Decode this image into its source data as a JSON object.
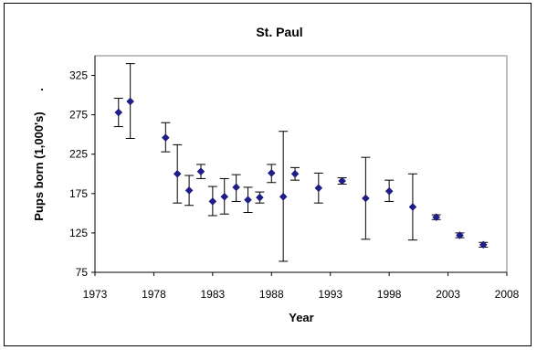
{
  "chart_data": {
    "type": "scatter",
    "title": "St. Paul",
    "xlabel": "Year",
    "ylabel": "Pups born (1,000's)",
    "ylabel_suffix": ".",
    "xlim": [
      1973,
      2008
    ],
    "ylim": [
      75,
      350
    ],
    "xticks": [
      1973,
      1978,
      1983,
      1988,
      1993,
      1998,
      2003,
      2008
    ],
    "yticks": [
      75,
      125,
      175,
      225,
      275,
      325
    ],
    "grid": false,
    "legend": false,
    "marker_color": "#1e1e8c",
    "points": [
      {
        "x": 1975,
        "y": 278,
        "lo": 260,
        "hi": 296
      },
      {
        "x": 1976,
        "y": 292,
        "lo": 245,
        "hi": 340
      },
      {
        "x": 1979,
        "y": 246,
        "lo": 228,
        "hi": 265
      },
      {
        "x": 1980,
        "y": 200,
        "lo": 163,
        "hi": 237
      },
      {
        "x": 1981,
        "y": 179,
        "lo": 160,
        "hi": 198
      },
      {
        "x": 1982,
        "y": 203,
        "lo": 194,
        "hi": 212
      },
      {
        "x": 1983,
        "y": 165,
        "lo": 147,
        "hi": 184
      },
      {
        "x": 1984,
        "y": 171,
        "lo": 149,
        "hi": 194
      },
      {
        "x": 1985,
        "y": 183,
        "lo": 165,
        "hi": 199
      },
      {
        "x": 1986,
        "y": 167,
        "lo": 151,
        "hi": 183
      },
      {
        "x": 1987,
        "y": 170,
        "lo": 163,
        "hi": 177
      },
      {
        "x": 1988,
        "y": 201,
        "lo": 189,
        "hi": 212
      },
      {
        "x": 1989,
        "y": 171,
        "lo": 89,
        "hi": 254
      },
      {
        "x": 1990,
        "y": 200,
        "lo": 192,
        "hi": 208
      },
      {
        "x": 1992,
        "y": 182,
        "lo": 163,
        "hi": 201
      },
      {
        "x": 1994,
        "y": 191,
        "lo": 187,
        "hi": 195
      },
      {
        "x": 1996,
        "y": 169,
        "lo": 117,
        "hi": 221
      },
      {
        "x": 1998,
        "y": 178,
        "lo": 165,
        "hi": 192
      },
      {
        "x": 2000,
        "y": 158,
        "lo": 116,
        "hi": 200
      },
      {
        "x": 2002,
        "y": 145,
        "lo": 142,
        "hi": 148
      },
      {
        "x": 2004,
        "y": 122,
        "lo": 119,
        "hi": 125
      },
      {
        "x": 2006,
        "y": 110,
        "lo": 107,
        "hi": 113
      }
    ]
  }
}
